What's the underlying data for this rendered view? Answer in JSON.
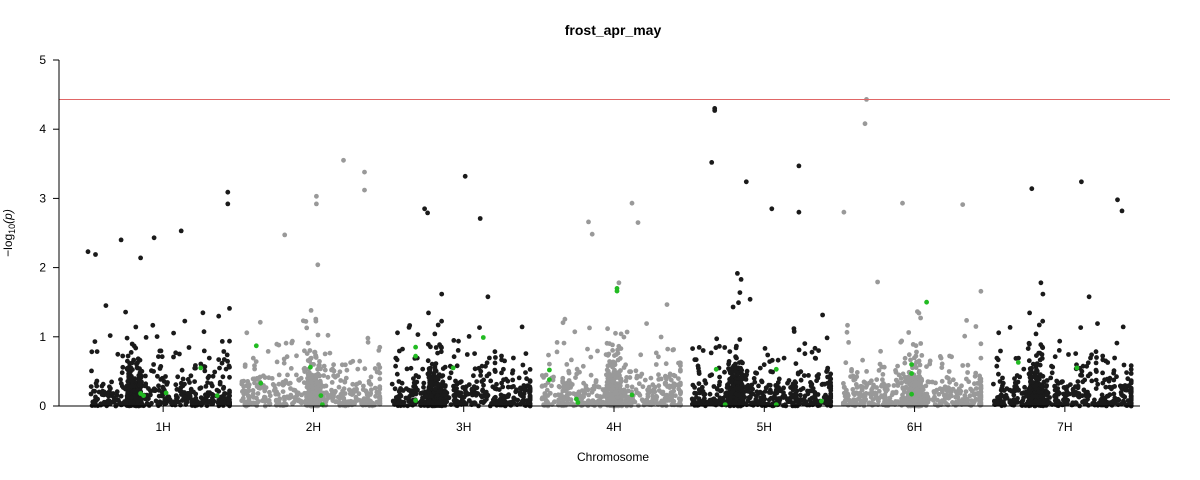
{
  "chart_data": {
    "type": "scatter",
    "title": "frost_apr_may",
    "xlabel": "Chromosome",
    "ylabel_main": "−log",
    "ylabel_sub": "10",
    "ylabel_tail": "(p)",
    "ylim": [
      0,
      5
    ],
    "yticks": [
      "0",
      "1",
      "2",
      "3",
      "4",
      "5"
    ],
    "threshold": 4.43,
    "grid": false,
    "chromosomes": [
      {
        "label": "1H",
        "start": 0,
        "end": 1.0,
        "color": "#1a1a1a"
      },
      {
        "label": "2H",
        "start": 1.0,
        "end": 2.0,
        "color": "#999999"
      },
      {
        "label": "3H",
        "start": 2.0,
        "end": 3.0,
        "color": "#1a1a1a"
      },
      {
        "label": "4H",
        "start": 3.0,
        "end": 4.0,
        "color": "#999999"
      },
      {
        "label": "5H",
        "start": 4.0,
        "end": 5.0,
        "color": "#1a1a1a"
      },
      {
        "label": "6H",
        "start": 5.0,
        "end": 6.0,
        "color": "#999999"
      },
      {
        "label": "7H",
        "start": 6.0,
        "end": 7.0,
        "color": "#1a1a1a"
      }
    ],
    "colors": {
      "threshold_line": "#e06666",
      "highlight": "#22bb22",
      "dark": "#1a1a1a",
      "light": "#999999"
    },
    "notable_points": [
      {
        "x": 4.17,
        "y": 4.3
      },
      {
        "x": 4.17,
        "y": 4.27
      },
      {
        "x": 5.18,
        "y": 4.43
      },
      {
        "x": 5.17,
        "y": 4.08
      },
      {
        "x": 1.7,
        "y": 3.55
      },
      {
        "x": 1.84,
        "y": 3.38
      },
      {
        "x": 1.84,
        "y": 3.12
      },
      {
        "x": 4.73,
        "y": 3.47
      },
      {
        "x": 4.15,
        "y": 3.52
      },
      {
        "x": 4.38,
        "y": 3.24
      },
      {
        "x": 2.51,
        "y": 3.32
      },
      {
        "x": 6.61,
        "y": 3.24
      },
      {
        "x": 6.28,
        "y": 3.14
      },
      {
        "x": 0.93,
        "y": 3.09
      },
      {
        "x": 0.93,
        "y": 2.92
      },
      {
        "x": 1.52,
        "y": 3.03
      },
      {
        "x": 1.52,
        "y": 2.92
      },
      {
        "x": 5.42,
        "y": 2.93
      },
      {
        "x": 3.62,
        "y": 2.93
      },
      {
        "x": 5.82,
        "y": 2.91
      },
      {
        "x": 6.85,
        "y": 2.98
      },
      {
        "x": 2.24,
        "y": 2.85
      },
      {
        "x": 4.55,
        "y": 2.85
      },
      {
        "x": 4.73,
        "y": 2.8
      },
      {
        "x": 5.03,
        "y": 2.8
      },
      {
        "x": 2.26,
        "y": 2.79
      },
      {
        "x": 2.61,
        "y": 2.71
      },
      {
        "x": 3.33,
        "y": 2.66
      },
      {
        "x": 6.88,
        "y": 2.82
      },
      {
        "x": 0.62,
        "y": 2.53
      },
      {
        "x": 0.0,
        "y": 2.23
      },
      {
        "x": 0.05,
        "y": 2.19
      },
      {
        "x": 0.44,
        "y": 2.43
      },
      {
        "x": 0.22,
        "y": 2.4
      },
      {
        "x": 0.35,
        "y": 2.14
      },
      {
        "x": 3.66,
        "y": 2.65
      }
    ],
    "highlight_points": [
      {
        "x": 0.35,
        "y": 0.18
      },
      {
        "x": 0.37,
        "y": 0.15
      },
      {
        "x": 0.52,
        "y": 0.19
      },
      {
        "x": 0.75,
        "y": 0.55
      },
      {
        "x": 0.86,
        "y": 0.15
      },
      {
        "x": 1.12,
        "y": 0.87
      },
      {
        "x": 1.15,
        "y": 0.33
      },
      {
        "x": 1.48,
        "y": 0.56
      },
      {
        "x": 1.55,
        "y": 0.15
      },
      {
        "x": 1.56,
        "y": 0.02
      },
      {
        "x": 2.18,
        "y": 0.85
      },
      {
        "x": 2.18,
        "y": 0.72
      },
      {
        "x": 2.18,
        "y": 0.08
      },
      {
        "x": 2.43,
        "y": 0.55
      },
      {
        "x": 2.63,
        "y": 0.99
      },
      {
        "x": 3.07,
        "y": 0.52
      },
      {
        "x": 3.07,
        "y": 0.38
      },
      {
        "x": 3.25,
        "y": 0.1
      },
      {
        "x": 3.26,
        "y": 0.05
      },
      {
        "x": 3.52,
        "y": 1.7
      },
      {
        "x": 3.52,
        "y": 1.66
      },
      {
        "x": 3.62,
        "y": 0.16
      },
      {
        "x": 4.18,
        "y": 0.53
      },
      {
        "x": 4.24,
        "y": 0.02
      },
      {
        "x": 4.58,
        "y": 0.53
      },
      {
        "x": 4.58,
        "y": 0.02
      },
      {
        "x": 4.88,
        "y": 0.07
      },
      {
        "x": 5.48,
        "y": 0.6
      },
      {
        "x": 5.48,
        "y": 0.47
      },
      {
        "x": 5.48,
        "y": 0.17
      },
      {
        "x": 5.58,
        "y": 1.5
      },
      {
        "x": 6.19,
        "y": 0.63
      },
      {
        "x": 6.58,
        "y": 0.55
      }
    ]
  }
}
